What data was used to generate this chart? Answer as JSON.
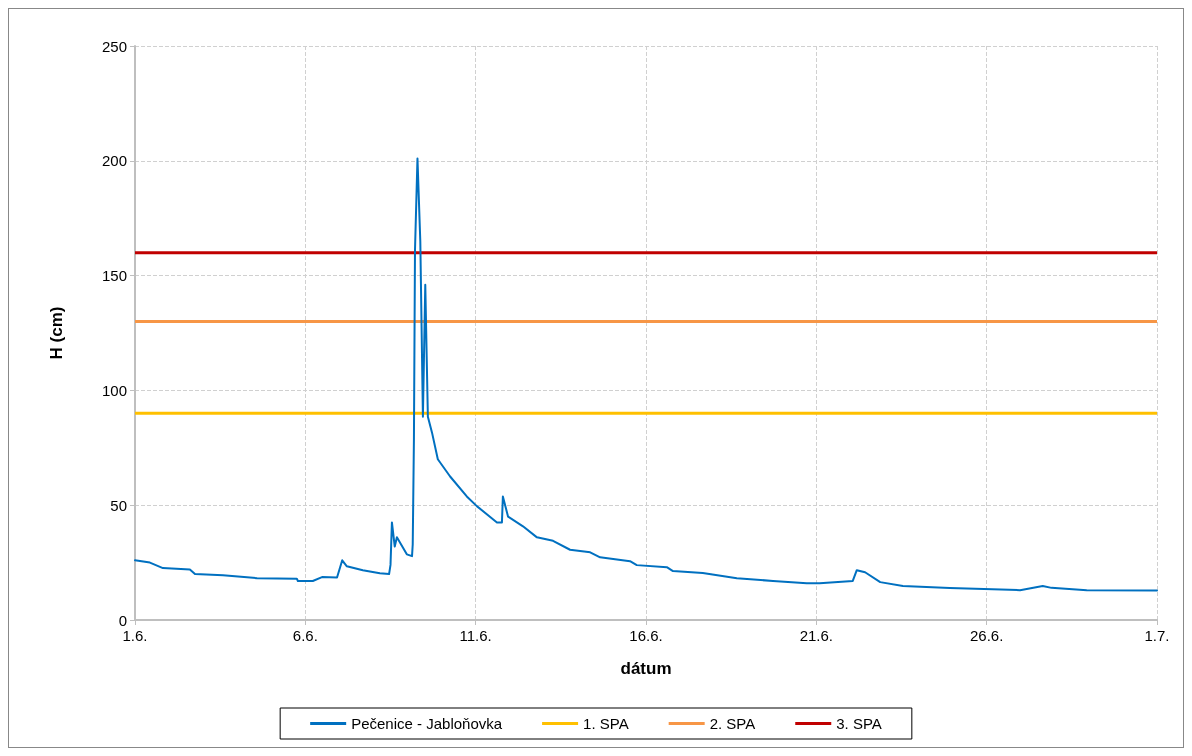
{
  "chart_data": {
    "type": "line",
    "xlabel": "dátum",
    "ylabel": "H (cm)",
    "xlim": [
      "--06-01",
      "--07-01"
    ],
    "xticks": [
      {
        "value": "--06-01",
        "label": "1.6."
      },
      {
        "value": "--06-06",
        "label": "6.6."
      },
      {
        "value": "--06-11",
        "label": "11.6."
      },
      {
        "value": "--06-16",
        "label": "16.6."
      },
      {
        "value": "--06-21",
        "label": "21.6."
      },
      {
        "value": "--06-26",
        "label": "26.6."
      },
      {
        "value": "--07-01",
        "label": "1.7."
      }
    ],
    "ylim": [
      0,
      250
    ],
    "yticks": [
      0,
      50,
      100,
      150,
      200,
      250
    ],
    "grid": true,
    "legend": "bottom",
    "line_style": "solid",
    "marker": "none",
    "series": [
      {
        "name": "Pečenice - Jabloňovka",
        "color": "#0070c0",
        "x": [
          "--06-01T00:00",
          "--06-01T10:30",
          "--06-01T19:40",
          "--06-02T14:40",
          "--06-02T18:15",
          "--06-03T14:00",
          "--06-04T14:00",
          "--06-05T18:00",
          "--06-05T18:45",
          "--06-06T05:15",
          "--06-06T11:45",
          "--06-06T22:20",
          "--06-07T02:00",
          "--06-07T05:15",
          "--06-07T16:30",
          "--06-08T04:30",
          "--06-08T11:00",
          "--06-08T12:00",
          "--06-08T13:00",
          "--06-08T15:00",
          "--06-08T16:30",
          "--06-08T23:30",
          "--06-09T03:10",
          "--06-09T03:40",
          "--06-09T04:30",
          "--06-09T05:15",
          "--06-09T07:00",
          "--06-09T09:00",
          "--06-09T10:50",
          "--06-09T12:30",
          "--06-09T14:20",
          "--06-09T17:15",
          "--06-09T21:20",
          "--06-10T06:00",
          "--06-10T17:45",
          "--06-11T01:00",
          "--06-11T15:00",
          "--06-11T18:30",
          "--06-11T19:10",
          "--06-11T22:50",
          "--06-12T09:20",
          "--06-12T19:10",
          "--06-13T06:30",
          "--06-13T18:30",
          "--06-14T08:40",
          "--06-14T15:40",
          "--06-15T12:45",
          "--06-15T17:30",
          "--06-16T14:40",
          "--06-16T19:00",
          "--06-17T16:00",
          "--06-18T16:00",
          "--06-19T17:30",
          "--06-20T17:15",
          "--06-21T02:20",
          "--06-22T01:40",
          "--06-22T04:30",
          "--06-22T10:20",
          "--06-22T21:00",
          "--06-23T13:00",
          "--06-24T22:00",
          "--06-26T23:30",
          "--06-27T15:30",
          "--06-27T21:40",
          "--06-28T22:30",
          "--07-01T00:00"
        ],
        "values": [
          26,
          25,
          22.6,
          22,
          20,
          19.5,
          18.2,
          18,
          17,
          17,
          18.7,
          18.5,
          26,
          23.4,
          21.7,
          20.4,
          20,
          24,
          42.5,
          32,
          36,
          28.6,
          27.8,
          33,
          78.6,
          161,
          201,
          165,
          88.5,
          146,
          88.5,
          81.6,
          70,
          62.5,
          53.8,
          49.5,
          42.5,
          42.5,
          53.8,
          45,
          40.8,
          36,
          34.5,
          30.6,
          29.5,
          27.3,
          25.6,
          23.9,
          23,
          21.3,
          20.5,
          18.2,
          17,
          16,
          16,
          17,
          21.7,
          20.8,
          16.5,
          14.8,
          13.9,
          13,
          14.8,
          14,
          13,
          12.8
        ]
      }
    ],
    "ref_lines": [
      {
        "axis": "y",
        "value": 90,
        "label": "1. SPA",
        "color": "#ffc000"
      },
      {
        "axis": "y",
        "value": 130,
        "label": "2. SPA",
        "color": "#f79646"
      },
      {
        "axis": "y",
        "value": 160,
        "label": "3. SPA",
        "color": "#c00000"
      }
    ]
  }
}
